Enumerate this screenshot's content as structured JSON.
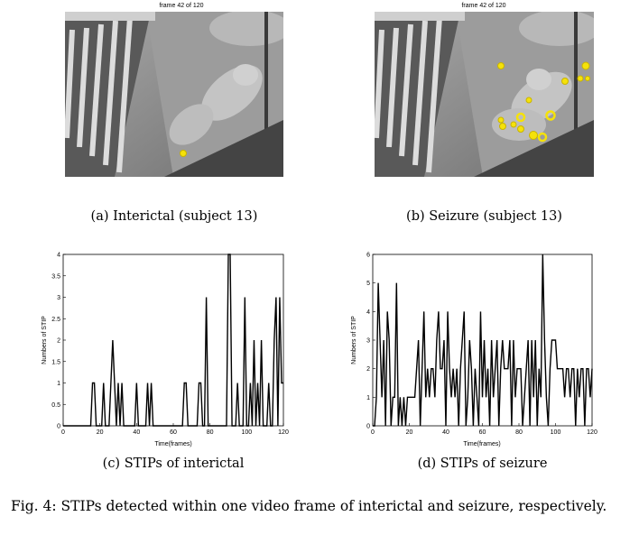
{
  "panels": [
    {
      "id": "a",
      "frame_title": "frame 42 of 120",
      "caption": "(a) Interictal (subject 13)",
      "stip_marker_color": "#f5e20a"
    },
    {
      "id": "b",
      "frame_title": "frame 42 of 120",
      "caption": "(b) Seizure (subject 13)",
      "stip_marker_color": "#f5e20a"
    }
  ],
  "chart_data": [
    {
      "type": "line",
      "caption": "(c) STIPs of interictal",
      "xlabel": "Time(frames)",
      "ylabel": "Numbers of STIP",
      "xlim": [
        0,
        120
      ],
      "ylim": [
        0,
        4
      ],
      "xticks": [
        0,
        20,
        40,
        60,
        80,
        100,
        120
      ],
      "yticks": [
        0,
        0.5,
        1,
        1.5,
        2,
        2.5,
        3,
        3.5,
        4
      ],
      "series": [
        {
          "values": [
            0,
            0,
            0,
            0,
            0,
            0,
            0,
            0,
            0,
            0,
            0,
            0,
            0,
            0,
            0,
            0,
            1,
            1,
            0,
            0,
            0,
            0,
            1,
            0,
            0,
            0,
            1,
            2,
            1,
            0,
            1,
            0,
            1,
            0,
            0,
            0,
            0,
            0,
            0,
            0,
            1,
            0,
            0,
            0,
            0,
            0,
            1,
            0,
            1,
            0,
            0,
            0,
            0,
            0,
            0,
            0,
            0,
            0,
            0,
            0,
            0,
            0,
            0,
            0,
            0,
            0,
            1,
            1,
            0,
            0,
            0,
            0,
            0,
            0,
            1,
            1,
            0,
            0,
            3,
            0,
            0,
            0,
            0,
            0,
            0,
            0,
            0,
            0,
            0,
            0,
            4,
            4,
            0,
            0,
            0,
            1,
            0,
            0,
            0,
            3,
            0,
            0,
            1,
            0,
            2,
            0,
            1,
            0,
            2,
            0,
            0,
            0,
            1,
            0,
            0,
            2,
            3,
            0,
            3,
            1,
            1
          ]
        }
      ]
    },
    {
      "type": "line",
      "caption": "(d) STIPs of seizure",
      "xlabel": "Time(frames)",
      "ylabel": "Numbers of STIP",
      "xlim": [
        0,
        120
      ],
      "ylim": [
        0,
        6
      ],
      "xticks": [
        0,
        20,
        40,
        60,
        80,
        100,
        120
      ],
      "yticks": [
        0,
        1,
        2,
        3,
        4,
        5,
        6
      ],
      "series": [
        {
          "values": [
            0,
            0,
            1,
            5,
            3,
            1,
            3,
            0,
            4,
            3,
            0,
            1,
            1,
            5,
            0,
            1,
            0,
            1,
            0,
            1,
            1,
            1,
            1,
            1,
            2,
            3,
            0,
            2,
            4,
            1,
            2,
            1,
            2,
            2,
            1,
            3,
            4,
            2,
            2,
            3,
            0,
            4,
            2,
            1,
            2,
            1,
            2,
            0,
            2,
            3,
            4,
            0,
            1,
            3,
            2,
            0,
            2,
            1,
            0,
            4,
            1,
            3,
            1,
            2,
            0,
            3,
            1,
            2,
            3,
            0,
            2,
            3,
            2,
            2,
            2,
            3,
            0,
            3,
            1,
            2,
            2,
            2,
            0,
            1,
            2,
            3,
            0,
            3,
            1,
            3,
            0,
            2,
            1,
            6,
            3,
            1,
            0,
            2,
            3,
            3,
            3,
            2,
            2,
            2,
            2,
            1,
            2,
            2,
            1,
            2,
            2,
            0,
            2,
            1,
            2,
            2,
            0,
            2,
            2,
            1,
            2
          ]
        }
      ]
    }
  ],
  "figure_caption": "Fig. 4: STIPs detected within one video frame of interictal and seizure, respectively."
}
